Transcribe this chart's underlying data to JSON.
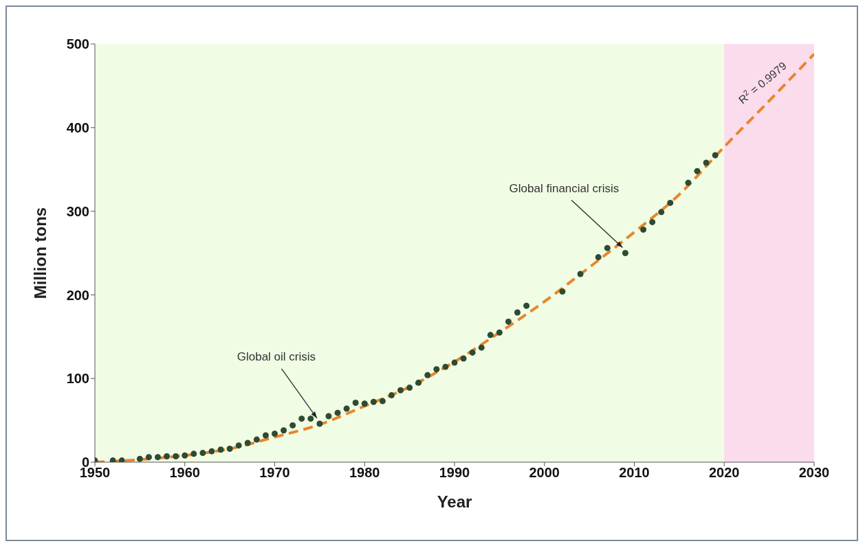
{
  "chart_data": {
    "type": "scatter",
    "xlabel": "Year",
    "ylabel": "Million tons",
    "xlim": [
      1950,
      2030
    ],
    "xticks": [
      1950,
      1960,
      1970,
      1980,
      1990,
      2000,
      2010,
      2020,
      2030
    ],
    "ylim": [
      0,
      500
    ],
    "yticks": [
      0,
      100,
      200,
      300,
      400,
      500
    ],
    "series": [
      {
        "marker": "circle",
        "color": "#2f4a33",
        "x": [
          1950,
          1952,
          1953,
          1955,
          1956,
          1957,
          1958,
          1959,
          1960,
          1961,
          1962,
          1963,
          1964,
          1965,
          1966,
          1967,
          1968,
          1969,
          1970,
          1971,
          1972,
          1973,
          1974,
          1975,
          1976,
          1977,
          1978,
          1979,
          1980,
          1981,
          1982,
          1983,
          1984,
          1985,
          1986,
          1987,
          1988,
          1989,
          1990,
          1991,
          1992,
          1993,
          1994,
          1995,
          1996,
          1997,
          1998,
          2002,
          2004,
          2006,
          2007,
          2009,
          2011,
          2012,
          2013,
          2014,
          2016,
          2017,
          2018,
          2019
        ],
        "values": [
          2,
          2,
          2,
          4,
          6,
          6,
          7,
          7,
          8,
          10,
          11,
          13,
          15,
          16,
          20,
          23,
          27,
          32,
          34,
          38,
          44,
          52,
          52,
          46,
          55,
          59,
          64,
          71,
          70,
          72,
          73,
          80,
          86,
          89,
          95,
          104,
          111,
          114,
          119,
          124,
          131,
          137,
          152,
          155,
          168,
          179,
          187,
          204,
          225,
          245,
          256,
          250,
          278,
          287,
          299,
          310,
          334,
          348,
          358,
          367
        ]
      },
      {
        "type": "line",
        "line_style": "dashed",
        "color": "#e8862a",
        "x": [
          1950,
          1955,
          1960,
          1965,
          1970,
          1975,
          1980,
          1985,
          1990,
          1995,
          2000,
          2005,
          2010,
          2015,
          2020,
          2025,
          2030
        ],
        "values": [
          0,
          3,
          8,
          16,
          30,
          45,
          67,
          90,
          120,
          155,
          192,
          233,
          275,
          320,
          377,
          432,
          488
        ]
      }
    ],
    "bands": [
      {
        "axis": "x",
        "from": 1950,
        "to": 2020,
        "color": "#f0fce4"
      },
      {
        "axis": "x",
        "from": 2020,
        "to": 2030,
        "color": "#fadcec"
      }
    ],
    "annotations": [
      {
        "text": "Global oil crisis",
        "x": 1975,
        "y": 46
      },
      {
        "text": "Global financial crisis",
        "x": 2009,
        "y": 250
      },
      "R$^{2}$ = 0.9979"
    ]
  }
}
